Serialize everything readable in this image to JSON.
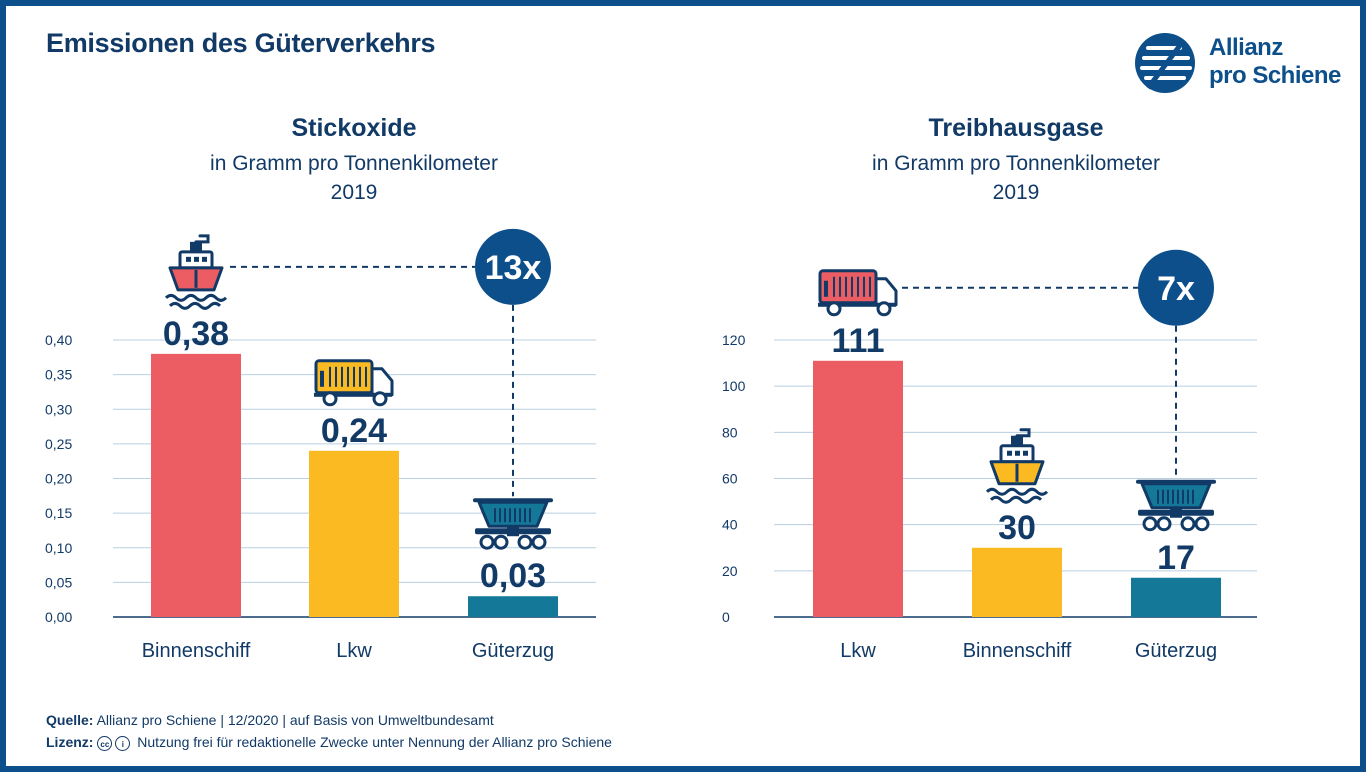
{
  "page": {
    "title": "Emissionen des Güterverkehrs",
    "logo": {
      "line1": "Allianz",
      "line2": "pro Schiene"
    },
    "footer": {
      "source_label": "Quelle:",
      "source_text": "Allianz pro Schiene | 12/2020 | auf Basis von Umweltbundesamt",
      "license_label": "Lizenz:",
      "license_text": "Nutzung frei für redaktionelle Zwecke unter Nennung der Allianz pro Schiene"
    }
  },
  "colors": {
    "navy": "#123a67",
    "red": "#ec5d63",
    "yellow": "#fbba22",
    "teal": "#147898",
    "grid": "#b9cfe0"
  },
  "chart_data": [
    {
      "type": "bar",
      "title": "Stickoxide",
      "subtitle": "in Gramm pro Tonnenkilometer",
      "year": "2019",
      "categories": [
        "Binnenschiff",
        "Lkw",
        "Güterzug"
      ],
      "values": [
        0.38,
        0.24,
        0.03
      ],
      "value_labels": [
        "0,38",
        "0,24",
        "0,03"
      ],
      "bar_colors": [
        "#ec5d63",
        "#fbba22",
        "#147898"
      ],
      "icons": [
        "ship-icon",
        "truck-icon",
        "train-icon"
      ],
      "yticks": [
        0,
        0.05,
        0.1,
        0.15,
        0.2,
        0.25,
        0.3,
        0.35,
        0.4
      ],
      "ytick_labels": [
        "0,00",
        "0,05",
        "0,10",
        "0,15",
        "0,20",
        "0,25",
        "0,30",
        "0,35",
        "0,40"
      ],
      "ylim": [
        0,
        0.4
      ],
      "grid": true,
      "comparison": {
        "label": "13x",
        "from": 0,
        "to": 2
      }
    },
    {
      "type": "bar",
      "title": "Treibhausgase",
      "subtitle": "in Gramm pro Tonnenkilometer",
      "year": "2019",
      "categories": [
        "Lkw",
        "Binnenschiff",
        "Güterzug"
      ],
      "values": [
        111,
        30,
        17
      ],
      "value_labels": [
        "111",
        "30",
        "17"
      ],
      "bar_colors": [
        "#ec5d63",
        "#fbba22",
        "#147898"
      ],
      "icons": [
        "truck-icon",
        "ship-icon",
        "train-icon"
      ],
      "yticks": [
        0,
        20,
        40,
        60,
        80,
        100,
        120
      ],
      "ytick_labels": [
        "0",
        "20",
        "40",
        "60",
        "80",
        "100",
        "120"
      ],
      "ylim": [
        0,
        120
      ],
      "grid": true,
      "comparison": {
        "label": "7x",
        "from": 0,
        "to": 2
      }
    }
  ]
}
